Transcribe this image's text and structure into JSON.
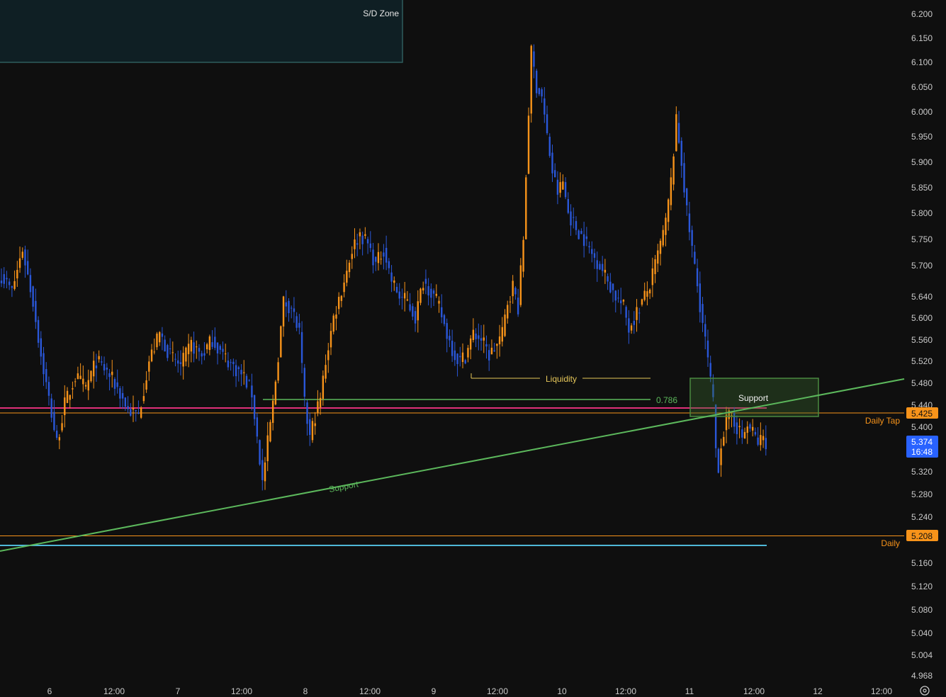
{
  "chart_data": {
    "type": "candlestick",
    "y_axis": {
      "ticks": [
        "6.200",
        "6.150",
        "6.100",
        "6.050",
        "6.000",
        "5.950",
        "5.900",
        "5.850",
        "5.800",
        "5.750",
        "5.700",
        "5.640",
        "5.600",
        "5.560",
        "5.520",
        "5.480",
        "5.440",
        "5.400",
        "5.320",
        "5.280",
        "5.240",
        "5.160",
        "5.120",
        "5.080",
        "5.040",
        "5.004",
        "4.968"
      ],
      "range": [
        4.958,
        6.21
      ],
      "scale": "log"
    },
    "x_axis": {
      "ticks": [
        "6",
        "12:00",
        "7",
        "12:00",
        "8",
        "12:00",
        "9",
        "12:00",
        "10",
        "12:00",
        "11",
        "12:00",
        "12",
        "12:00"
      ]
    },
    "price_labels": {
      "daily_tap": {
        "value": "5.425",
        "label": "Daily Tap",
        "color": "#f7931a"
      },
      "daily": {
        "value": "5.208",
        "label": "Daily",
        "color": "#f7931a"
      },
      "last": {
        "value": "5.374",
        "countdown": "16:48",
        "color": "#2962ff"
      }
    },
    "annotations": {
      "sd_zone": "S/D Zone",
      "liquidity": "Liquidity",
      "fib": "0.786",
      "support_box": "Support",
      "support_line": "Support"
    },
    "levels": {
      "daily_tap": 5.425,
      "daily": 5.208,
      "pink": 5.433,
      "cyan": 5.198,
      "fib_786": 5.455,
      "liquidity": 5.49,
      "support_box": [
        5.42,
        5.492
      ],
      "sd_zone": [
        6.1,
        6.3
      ]
    },
    "colors": {
      "up": "#f7931a",
      "down": "#2a57d8",
      "support": "#5cb85c",
      "pink": "#e0307a",
      "cyan": "#4fb8d8",
      "liquidity": "#e6c75a",
      "sd_zone_fill": "#0f1f24",
      "sd_zone_border": "#2e5d5d"
    },
    "price_path": [
      [
        0,
        5.68
      ],
      [
        4,
        5.65
      ],
      [
        8,
        5.73
      ],
      [
        12,
        5.63
      ],
      [
        15,
        5.53
      ],
      [
        18,
        5.45
      ],
      [
        21,
        5.37
      ],
      [
        24,
        5.44
      ],
      [
        28,
        5.49
      ],
      [
        32,
        5.47
      ],
      [
        36,
        5.52
      ],
      [
        40,
        5.5
      ],
      [
        44,
        5.47
      ],
      [
        48,
        5.43
      ],
      [
        52,
        5.42
      ],
      [
        56,
        5.52
      ],
      [
        60,
        5.57
      ],
      [
        64,
        5.53
      ],
      [
        68,
        5.51
      ],
      [
        72,
        5.55
      ],
      [
        76,
        5.53
      ],
      [
        80,
        5.56
      ],
      [
        84,
        5.53
      ],
      [
        88,
        5.51
      ],
      [
        92,
        5.49
      ],
      [
        95,
        5.46
      ],
      [
        97,
        5.38
      ],
      [
        99,
        5.3
      ],
      [
        101,
        5.37
      ],
      [
        103,
        5.44
      ],
      [
        105,
        5.53
      ],
      [
        107,
        5.63
      ],
      [
        110,
        5.62
      ],
      [
        113,
        5.57
      ],
      [
        115,
        5.44
      ],
      [
        117,
        5.38
      ],
      [
        119,
        5.42
      ],
      [
        121,
        5.45
      ],
      [
        123,
        5.52
      ],
      [
        126,
        5.6
      ],
      [
        130,
        5.67
      ],
      [
        133,
        5.73
      ],
      [
        136,
        5.76
      ],
      [
        139,
        5.74
      ],
      [
        142,
        5.7
      ],
      [
        145,
        5.73
      ],
      [
        148,
        5.67
      ],
      [
        151,
        5.64
      ],
      [
        154,
        5.63
      ],
      [
        157,
        5.6
      ],
      [
        160,
        5.67
      ],
      [
        163,
        5.65
      ],
      [
        166,
        5.62
      ],
      [
        169,
        5.57
      ],
      [
        172,
        5.53
      ],
      [
        174,
        5.52
      ],
      [
        176,
        5.53
      ],
      [
        179,
        5.57
      ],
      [
        182,
        5.56
      ],
      [
        185,
        5.53
      ],
      [
        188,
        5.55
      ],
      [
        190,
        5.57
      ],
      [
        192,
        5.63
      ],
      [
        194,
        5.66
      ],
      [
        196,
        5.62
      ],
      [
        198,
        5.75
      ],
      [
        200,
        6.0
      ],
      [
        201,
        6.12
      ],
      [
        203,
        6.05
      ],
      [
        205,
        6.03
      ],
      [
        207,
        5.95
      ],
      [
        209,
        5.88
      ],
      [
        211,
        5.84
      ],
      [
        213,
        5.86
      ],
      [
        215,
        5.8
      ],
      [
        218,
        5.77
      ],
      [
        221,
        5.75
      ],
      [
        224,
        5.72
      ],
      [
        227,
        5.7
      ],
      [
        230,
        5.67
      ],
      [
        233,
        5.64
      ],
      [
        236,
        5.62
      ],
      [
        238,
        5.58
      ],
      [
        240,
        5.6
      ],
      [
        243,
        5.63
      ],
      [
        246,
        5.66
      ],
      [
        249,
        5.72
      ],
      [
        252,
        5.78
      ],
      [
        254,
        5.86
      ],
      [
        256,
        5.98
      ],
      [
        258,
        5.9
      ],
      [
        260,
        5.8
      ],
      [
        262,
        5.73
      ],
      [
        264,
        5.66
      ],
      [
        266,
        5.59
      ],
      [
        268,
        5.52
      ],
      [
        270,
        5.44
      ],
      [
        271,
        5.36
      ],
      [
        272,
        5.33
      ],
      [
        273,
        5.37
      ],
      [
        275,
        5.41
      ],
      [
        277,
        5.42
      ],
      [
        279,
        5.4
      ],
      [
        281,
        5.38
      ],
      [
        283,
        5.4
      ],
      [
        285,
        5.39
      ],
      [
        287,
        5.37
      ],
      [
        289,
        5.38
      ],
      [
        290,
        5.374
      ]
    ]
  }
}
